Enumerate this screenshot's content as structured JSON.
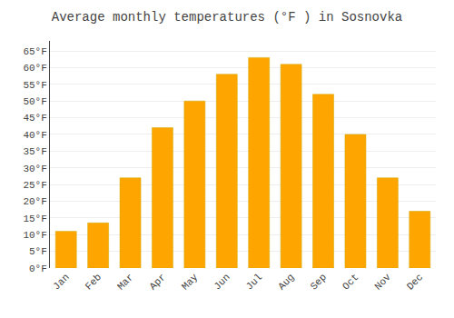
{
  "chart_data": {
    "type": "bar",
    "title": "Average monthly temperatures (°F ) in Sosnovka",
    "categories": [
      "Jan",
      "Feb",
      "Mar",
      "Apr",
      "May",
      "Jun",
      "Jul",
      "Aug",
      "Sep",
      "Oct",
      "Nov",
      "Dec"
    ],
    "values": [
      11,
      13.5,
      27,
      42,
      50,
      58,
      63,
      61,
      52,
      40,
      27,
      17
    ],
    "color": "#FFA500",
    "ylim": [
      0,
      68
    ],
    "yticks": [
      {
        "value": 0,
        "label": "0°F"
      },
      {
        "value": 5,
        "label": "5°F"
      },
      {
        "value": 10,
        "label": "10°F"
      },
      {
        "value": 15,
        "label": "15°F"
      },
      {
        "value": 20,
        "label": "20°F"
      },
      {
        "value": 25,
        "label": "25°F"
      },
      {
        "value": 30,
        "label": "30°F"
      },
      {
        "value": 35,
        "label": "35°F"
      },
      {
        "value": 40,
        "label": "40°F"
      },
      {
        "value": 45,
        "label": "45°F"
      },
      {
        "value": 50,
        "label": "50°F"
      },
      {
        "value": 55,
        "label": "55°F"
      },
      {
        "value": 60,
        "label": "60°F"
      },
      {
        "value": 65,
        "label": "65°F"
      }
    ],
    "grid": true
  }
}
